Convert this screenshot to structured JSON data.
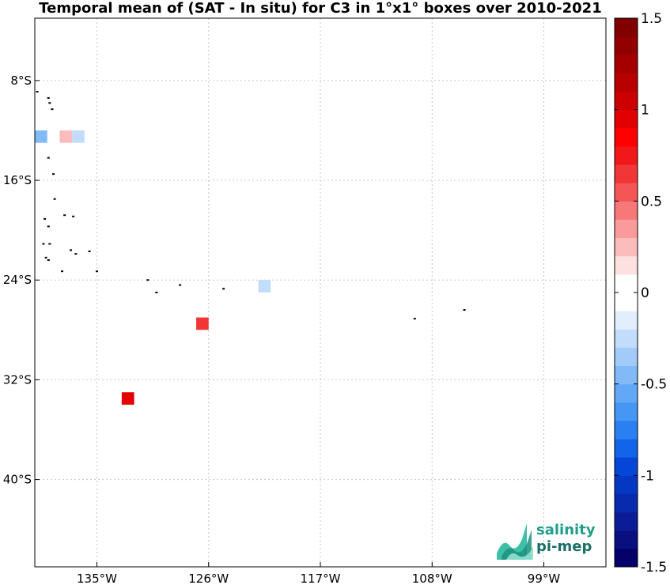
{
  "title": "Temporal mean of (SAT - In situ) for C3 in 1°x1° boxes over 2010-2021",
  "map": {
    "lon_range": [
      -140,
      -94
    ],
    "lat_range": [
      -47,
      -3
    ],
    "xticks": [
      {
        "lon": -135,
        "label": "135°W"
      },
      {
        "lon": -126,
        "label": "126°W"
      },
      {
        "lon": -117,
        "label": "117°W"
      },
      {
        "lon": -108,
        "label": "108°W"
      },
      {
        "lon": -99,
        "label": "99°W"
      }
    ],
    "yticks": [
      {
        "lat": -8,
        "label": "8°S"
      },
      {
        "lat": -16,
        "label": "16°S"
      },
      {
        "lat": -24,
        "label": "24°S"
      },
      {
        "lat": -32,
        "label": "32°S"
      },
      {
        "lat": -40,
        "label": "40°S"
      }
    ],
    "grid": "dotted"
  },
  "chart_data": {
    "type": "heatmap",
    "boxes": [
      {
        "lon": -139.5,
        "lat": -12.5,
        "value": -0.45
      },
      {
        "lon": -137.5,
        "lat": -12.5,
        "value": 0.25
      },
      {
        "lon": -136.5,
        "lat": -12.5,
        "value": -0.25
      },
      {
        "lon": -121.5,
        "lat": -24.5,
        "value": -0.25
      },
      {
        "lon": -126.5,
        "lat": -27.5,
        "value": 0.6
      },
      {
        "lon": -132.5,
        "lat": -33.5,
        "value": 0.95
      }
    ],
    "islands": [
      {
        "lon": -139.8,
        "lat": -8.9
      },
      {
        "lon": -138.9,
        "lat": -9.4
      },
      {
        "lon": -138.8,
        "lat": -9.8
      },
      {
        "lon": -138.6,
        "lat": -10.3
      },
      {
        "lon": -138.9,
        "lat": -14.2
      },
      {
        "lon": -138.5,
        "lat": -15.5
      },
      {
        "lon": -138.4,
        "lat": -17.5
      },
      {
        "lon": -139.2,
        "lat": -19.1
      },
      {
        "lon": -138.9,
        "lat": -19.7
      },
      {
        "lon": -137.6,
        "lat": -18.8
      },
      {
        "lon": -136.9,
        "lat": -18.9
      },
      {
        "lon": -139.3,
        "lat": -21.1
      },
      {
        "lon": -138.8,
        "lat": -21.1
      },
      {
        "lon": -137.1,
        "lat": -21.6
      },
      {
        "lon": -136.7,
        "lat": -21.9
      },
      {
        "lon": -135.6,
        "lat": -21.7
      },
      {
        "lon": -139.1,
        "lat": -22.2
      },
      {
        "lon": -138.9,
        "lat": -22.4
      },
      {
        "lon": -137.8,
        "lat": -23.3
      },
      {
        "lon": -135.0,
        "lat": -23.3
      },
      {
        "lon": -130.9,
        "lat": -24.0
      },
      {
        "lon": -130.2,
        "lat": -25.0
      },
      {
        "lon": -128.3,
        "lat": -24.4
      },
      {
        "lon": -124.8,
        "lat": -24.7
      },
      {
        "lon": -109.4,
        "lat": -27.1
      },
      {
        "lon": -105.4,
        "lat": -26.4
      }
    ],
    "colorbar": {
      "vmin": -1.5,
      "vmax": 1.5,
      "ticks": [
        {
          "value": 1.5,
          "label": "1.5"
        },
        {
          "value": 1,
          "label": "1"
        },
        {
          "value": 0.5,
          "label": "0.5"
        },
        {
          "value": 0,
          "label": "0"
        },
        {
          "value": -0.5,
          "label": "-0.5"
        },
        {
          "value": -1,
          "label": "-1"
        },
        {
          "value": -1.5,
          "label": "-1.5"
        }
      ],
      "colors": [
        "#05006a",
        "#0a0f80",
        "#0a1c96",
        "#082aac",
        "#0538c2",
        "#0447d8",
        "#1264e8",
        "#2a80f0",
        "#4696f4",
        "#63a8f6",
        "#82baf8",
        "#a2cbfa",
        "#c2ddfb",
        "#e2eefd",
        "#ffffff",
        "#ffffff",
        "#fde0e0",
        "#fcbcbc",
        "#fa9a9a",
        "#f77878",
        "#f45656",
        "#f23636",
        "#f01818",
        "#ff0000",
        "#e30000",
        "#cc0000",
        "#b80000",
        "#a50000",
        "#920000",
        "#800000"
      ]
    }
  },
  "logo": {
    "line1": "salinity",
    "line2": "pi-mep"
  }
}
